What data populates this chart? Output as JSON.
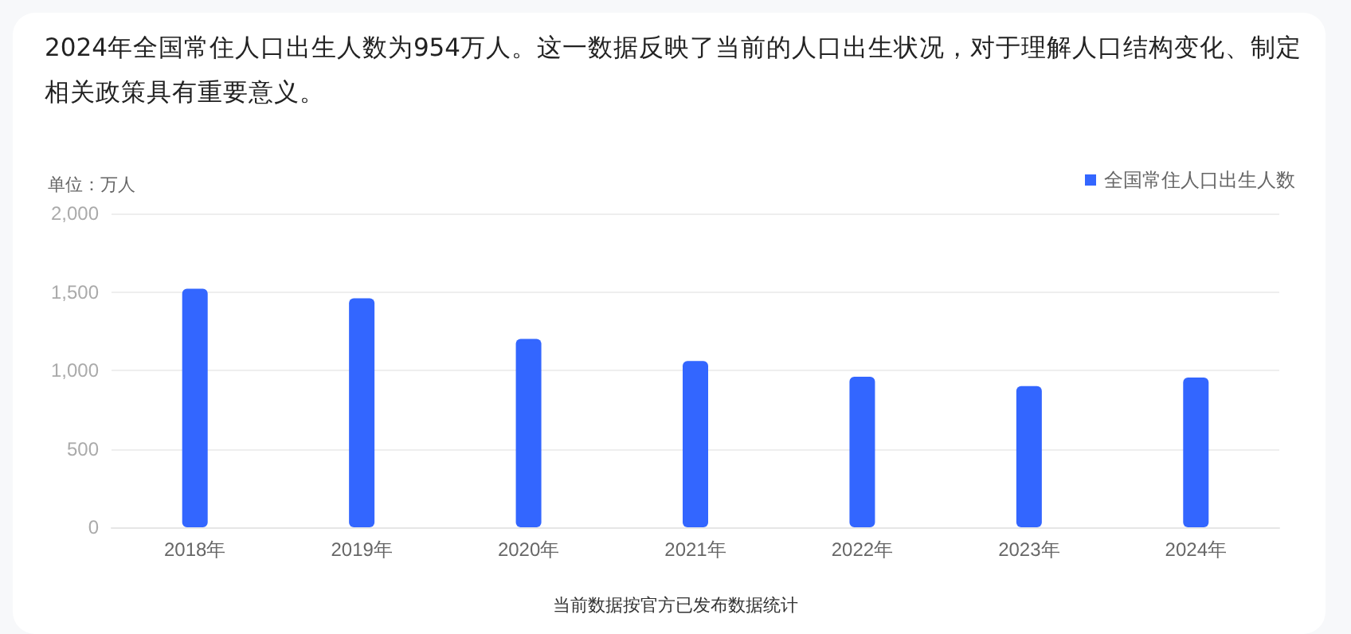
{
  "chart_data": {
    "type": "bar",
    "title": "2024年全国常住人口出生人数为954万人。这一数据反映了当前的人口出生状况，对于理解人口结构变化、制定相关政策具有重要意义。",
    "ylabel": "单位：万人",
    "categories": [
      "2018年",
      "2019年",
      "2020年",
      "2021年",
      "2022年",
      "2023年",
      "2024年"
    ],
    "series": [
      {
        "name": "全国常住人口出生人数",
        "color": "#3366ff",
        "values": [
          1520,
          1460,
          1200,
          1060,
          960,
          900,
          954
        ]
      }
    ],
    "ylim": [
      0,
      2000
    ],
    "yticks": [
      {
        "value": 0,
        "label": "0"
      },
      {
        "value": 500,
        "label": "500"
      },
      {
        "value": 1000,
        "label": "1,000"
      },
      {
        "value": 1500,
        "label": "1,500"
      },
      {
        "value": 2000,
        "label": "2,000"
      }
    ],
    "grid": "y",
    "legend": "top right",
    "annotations": [
      "当前数据按官方已发布数据统计"
    ]
  }
}
